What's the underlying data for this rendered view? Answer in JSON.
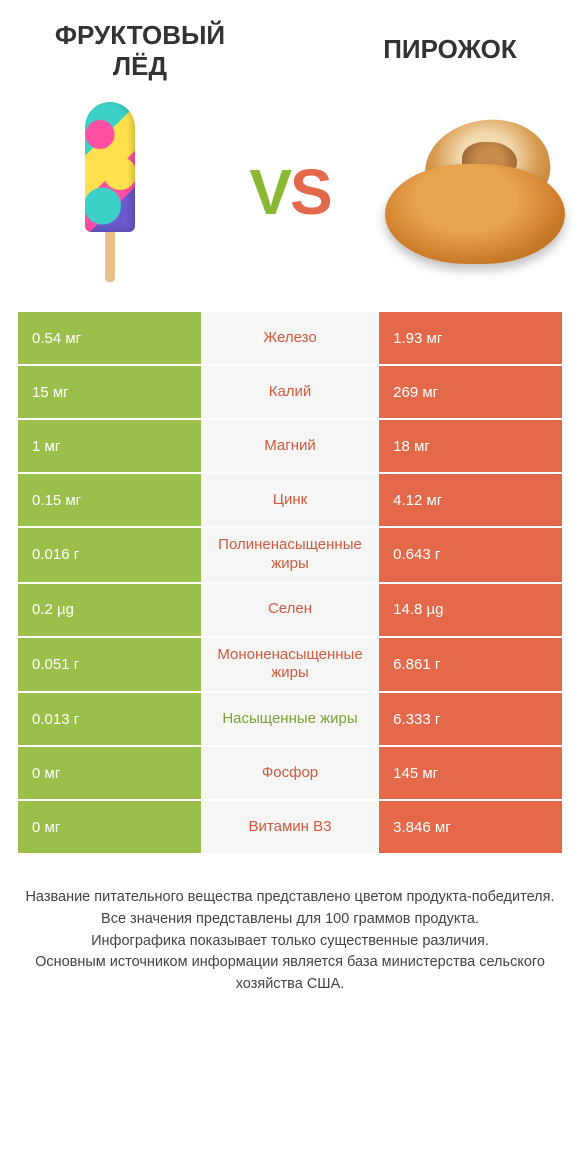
{
  "colors": {
    "green": "#9ac04b",
    "orange": "#e4694b",
    "mid_bg": "#f6f6f4",
    "mid_green_text": "#7ca338",
    "mid_orange_text": "#d25a3f"
  },
  "header": {
    "left_title": "ФРУКТОВЫЙ ЛЁД",
    "right_title": "ПИРОЖОК",
    "vs": {
      "v": "V",
      "s": "S"
    }
  },
  "rows": [
    {
      "left": "0.54 мг",
      "mid": "Железо",
      "right": "1.93 мг",
      "winner": "orange"
    },
    {
      "left": "15 мг",
      "mid": "Калий",
      "right": "269 мг",
      "winner": "orange"
    },
    {
      "left": "1 мг",
      "mid": "Магний",
      "right": "18 мг",
      "winner": "orange"
    },
    {
      "left": "0.15 мг",
      "mid": "Цинк",
      "right": "4.12 мг",
      "winner": "orange"
    },
    {
      "left": "0.016 г",
      "mid": "Полиненасыщенные жиры",
      "right": "0.643 г",
      "winner": "orange"
    },
    {
      "left": "0.2 µg",
      "mid": "Селен",
      "right": "14.8 µg",
      "winner": "orange"
    },
    {
      "left": "0.051 г",
      "mid": "Мононенасыщенные жиры",
      "right": "6.861 г",
      "winner": "orange"
    },
    {
      "left": "0.013 г",
      "mid": "Насыщенные жиры",
      "right": "6.333 г",
      "winner": "green"
    },
    {
      "left": "0 мг",
      "mid": "Фосфор",
      "right": "145 мг",
      "winner": "orange"
    },
    {
      "left": "0 мг",
      "mid": "Витамин B3",
      "right": "3.846 мг",
      "winner": "orange"
    }
  ],
  "footer": {
    "l1": "Название питательного вещества представлено цветом продукта-победителя.",
    "l2": "Все значения представлены для 100 граммов продукта.",
    "l3": "Инфографика показывает только существенные различия.",
    "l4": "Основным источником информации является база министерства сельского хозяйства США."
  }
}
